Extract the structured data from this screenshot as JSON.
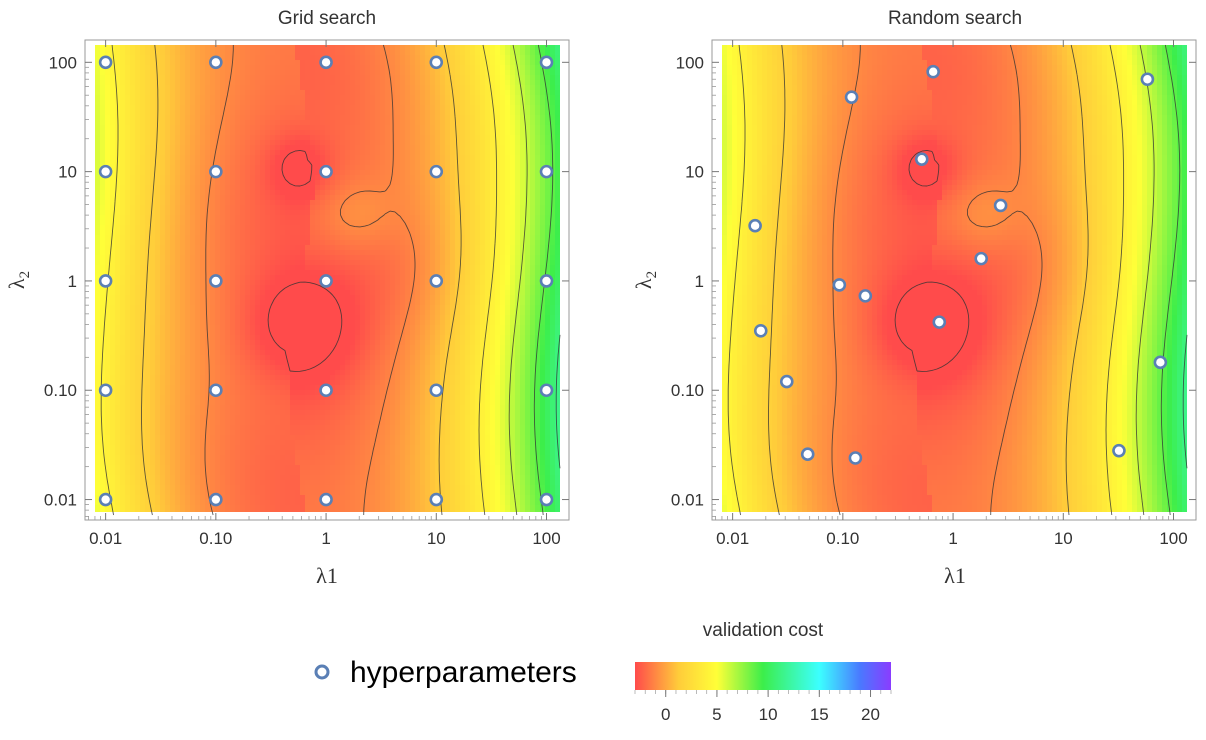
{
  "chart_data": [
    {
      "type": "contour",
      "title": "Grid search",
      "xlabel": "λ1",
      "ylabel": "λ2",
      "x_scale": "log",
      "y_scale": "log",
      "xlim": [
        0.0065,
        160
      ],
      "ylim": [
        0.0065,
        160
      ],
      "x_ticks": [
        {
          "value": 0.01,
          "label": "0.01"
        },
        {
          "value": 0.1,
          "label": "0.10"
        },
        {
          "value": 1,
          "label": "1"
        },
        {
          "value": 10,
          "label": "10"
        },
        {
          "value": 100,
          "label": "100"
        }
      ],
      "y_ticks": [
        {
          "value": 0.01,
          "label": "0.01"
        },
        {
          "value": 0.1,
          "label": "0.10"
        },
        {
          "value": 1,
          "label": "1"
        },
        {
          "value": 10,
          "label": "10"
        },
        {
          "value": 100,
          "label": "100"
        }
      ],
      "series": [
        {
          "name": "hyperparameters",
          "points": [
            [
              0.01,
              0.01
            ],
            [
              0.1,
              0.01
            ],
            [
              1,
              0.01
            ],
            [
              10,
              0.01
            ],
            [
              100,
              0.01
            ],
            [
              0.01,
              0.1
            ],
            [
              0.1,
              0.1
            ],
            [
              1,
              0.1
            ],
            [
              10,
              0.1
            ],
            [
              100,
              0.1
            ],
            [
              0.01,
              1
            ],
            [
              0.1,
              1
            ],
            [
              1,
              1
            ],
            [
              10,
              1
            ],
            [
              100,
              1
            ],
            [
              0.01,
              10
            ],
            [
              0.1,
              10
            ],
            [
              1,
              10
            ],
            [
              10,
              10
            ],
            [
              100,
              10
            ],
            [
              0.01,
              100
            ],
            [
              0.1,
              100
            ],
            [
              1,
              100
            ],
            [
              10,
              100
            ],
            [
              100,
              100
            ]
          ]
        }
      ]
    },
    {
      "type": "contour",
      "title": "Random search",
      "xlabel": "λ1",
      "ylabel": "λ2",
      "x_scale": "log",
      "y_scale": "log",
      "xlim": [
        0.0065,
        160
      ],
      "ylim": [
        0.0065,
        160
      ],
      "x_ticks": [
        {
          "value": 0.01,
          "label": "0.01"
        },
        {
          "value": 0.1,
          "label": "0.10"
        },
        {
          "value": 1,
          "label": "1"
        },
        {
          "value": 10,
          "label": "10"
        },
        {
          "value": 100,
          "label": "100"
        }
      ],
      "y_ticks": [
        {
          "value": 0.01,
          "label": "0.01"
        },
        {
          "value": 0.1,
          "label": "0.10"
        },
        {
          "value": 1,
          "label": "1"
        },
        {
          "value": 10,
          "label": "10"
        },
        {
          "value": 100,
          "label": "100"
        }
      ],
      "series": [
        {
          "name": "hyperparameters",
          "points": [
            [
              0.66,
              82
            ],
            [
              0.12,
              48
            ],
            [
              58,
              70
            ],
            [
              0.52,
              13
            ],
            [
              2.7,
              4.9
            ],
            [
              0.016,
              3.2
            ],
            [
              1.8,
              1.6
            ],
            [
              0.093,
              0.92
            ],
            [
              0.16,
              0.73
            ],
            [
              0.018,
              0.35
            ],
            [
              0.75,
              0.42
            ],
            [
              76,
              0.18
            ],
            [
              0.031,
              0.12
            ],
            [
              0.048,
              0.026
            ],
            [
              0.13,
              0.024
            ],
            [
              32,
              0.028
            ]
          ]
        }
      ]
    }
  ],
  "legend": {
    "label": "hyperparameters"
  },
  "colorbar": {
    "title": "validation cost",
    "range": [
      -3,
      22
    ],
    "ticks": [
      {
        "value": 0,
        "label": "0"
      },
      {
        "value": 5,
        "label": "5"
      },
      {
        "value": 10,
        "label": "10"
      },
      {
        "value": 15,
        "label": "15"
      },
      {
        "value": 20,
        "label": "20"
      }
    ],
    "colors": [
      "#ff4b4b",
      "#ffcc3a",
      "#ffff38",
      "#3cee4a",
      "#3cffff",
      "#4a78ff",
      "#8a3cff"
    ]
  }
}
